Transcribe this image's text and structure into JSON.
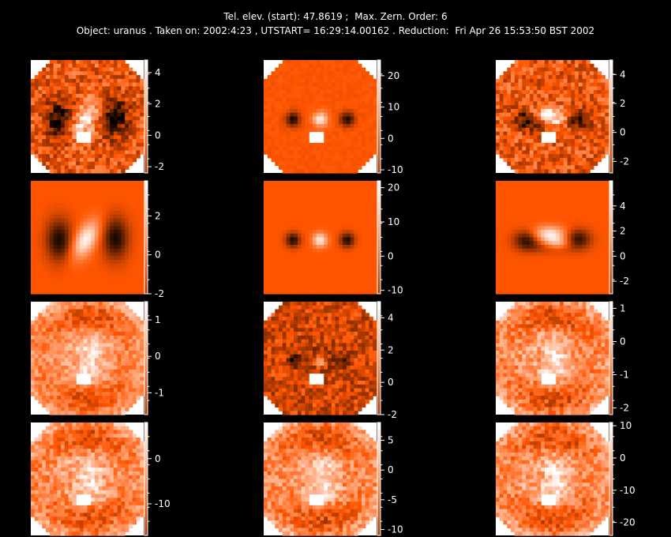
{
  "header": {
    "line1": "Tel. elev. (start): 47.8619 ;  Max. Zern. Order: 6",
    "line2": "Object: uranus . Taken on: 2002:4:23 , UTSTART= 16:29:14.00162 . Reduction:  Fri Apr 26 15:53:50 BST 2002"
  },
  "chart_data": {
    "type": "heatmap",
    "grid": "4x3",
    "colormap": "white-orange-black",
    "panels": [
      {
        "row": 0,
        "col": 0,
        "ticks": [
          4,
          2,
          0,
          -2
        ],
        "range": [
          -2.4,
          4.8
        ],
        "pattern": "astig",
        "mask": true,
        "noise": 0.35
      },
      {
        "row": 0,
        "col": 1,
        "ticks": [
          20,
          10,
          0,
          -10
        ],
        "range": [
          -11,
          25
        ],
        "pattern": "dots",
        "mask": true,
        "noise": 0.05
      },
      {
        "row": 0,
        "col": 2,
        "ticks": [
          4,
          2,
          0,
          -2
        ],
        "range": [
          -2.8,
          5
        ],
        "pattern": "astig2",
        "mask": true,
        "noise": 0.35
      },
      {
        "row": 1,
        "col": 0,
        "ticks": [
          2,
          0,
          -2
        ],
        "range": [
          -2,
          3.8
        ],
        "pattern": "astig",
        "mask": false,
        "noise": 0
      },
      {
        "row": 1,
        "col": 1,
        "ticks": [
          20,
          10,
          0,
          -10
        ],
        "range": [
          -11,
          22
        ],
        "pattern": "dots",
        "mask": false,
        "noise": 0
      },
      {
        "row": 1,
        "col": 2,
        "ticks": [
          4,
          2,
          0,
          -2
        ],
        "range": [
          -3,
          6
        ],
        "pattern": "astig2",
        "mask": false,
        "noise": 0
      },
      {
        "row": 2,
        "col": 0,
        "ticks": [
          1,
          0,
          -1
        ],
        "range": [
          -1.6,
          1.5
        ],
        "pattern": "residual",
        "mask": true,
        "noise": 0.25
      },
      {
        "row": 2,
        "col": 1,
        "ticks": [
          4,
          2,
          0,
          -2
        ],
        "range": [
          -2,
          5
        ],
        "pattern": "residual-dots",
        "mask": true,
        "noise": 0.3
      },
      {
        "row": 2,
        "col": 2,
        "ticks": [
          1,
          0,
          -1,
          -2
        ],
        "range": [
          -2.2,
          1.2
        ],
        "pattern": "residual",
        "mask": true,
        "noise": 0.3
      },
      {
        "row": 3,
        "col": 0,
        "ticks": [
          0,
          -10
        ],
        "range": [
          -17,
          8
        ],
        "pattern": "residual",
        "mask": true,
        "noise": 0.3
      },
      {
        "row": 3,
        "col": 1,
        "ticks": [
          5,
          0,
          -5,
          -10
        ],
        "range": [
          -11,
          8
        ],
        "pattern": "residual",
        "mask": true,
        "noise": 0.3
      },
      {
        "row": 3,
        "col": 2,
        "ticks": [
          10,
          0,
          -10,
          -20
        ],
        "range": [
          -24,
          11
        ],
        "pattern": "residual",
        "mask": true,
        "noise": 0.3
      }
    ]
  }
}
